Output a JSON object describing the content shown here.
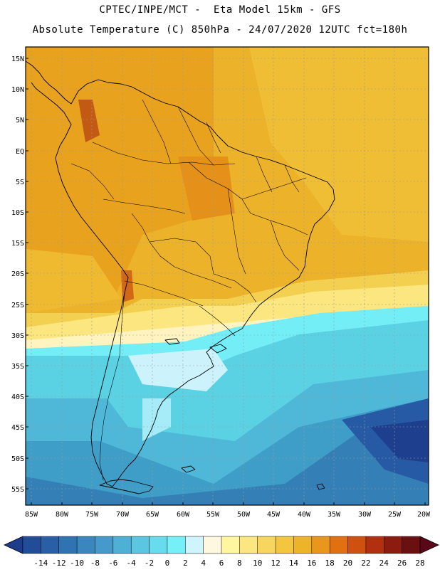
{
  "title": {
    "line1": "CPTEC/INPE/MCT -  Eta Model 15km - GFS",
    "line2": "Absolute Temperature (C) 850hPa - 24/07/2020 12UTC fct=180h"
  },
  "axes": {
    "lat_labels": [
      "15N",
      "10N",
      "5N",
      "EQ",
      "5S",
      "10S",
      "15S",
      "20S",
      "25S",
      "30S",
      "35S",
      "40S",
      "45S",
      "50S",
      "55S"
    ],
    "lon_labels": [
      "85W",
      "80W",
      "75W",
      "70W",
      "65W",
      "60W",
      "55W",
      "50W",
      "45W",
      "40W",
      "35W",
      "30W",
      "25W",
      "20W"
    ]
  },
  "colorbar": {
    "labels": [
      "-14",
      "-12",
      "-10",
      "-8",
      "-6",
      "-4",
      "-2",
      "0",
      "2",
      "4",
      "6",
      "8",
      "10",
      "12",
      "14",
      "16",
      "18",
      "20",
      "22",
      "24",
      "26",
      "28"
    ],
    "colors": [
      "#1e3c8c",
      "#234c98",
      "#2a5ea6",
      "#3172b2",
      "#3a86be",
      "#459aca",
      "#4fb0d6",
      "#5ac6e0",
      "#66dcec",
      "#74f0f6",
      "#d0f4fc",
      "#fff8e0",
      "#fff6a0",
      "#fbe680",
      "#f7d660",
      "#f3c640",
      "#edb42a",
      "#e8961c",
      "#e07010",
      "#d05010",
      "#b03010",
      "#8c1c10",
      "#6a1010",
      "#5a0818"
    ]
  }
}
